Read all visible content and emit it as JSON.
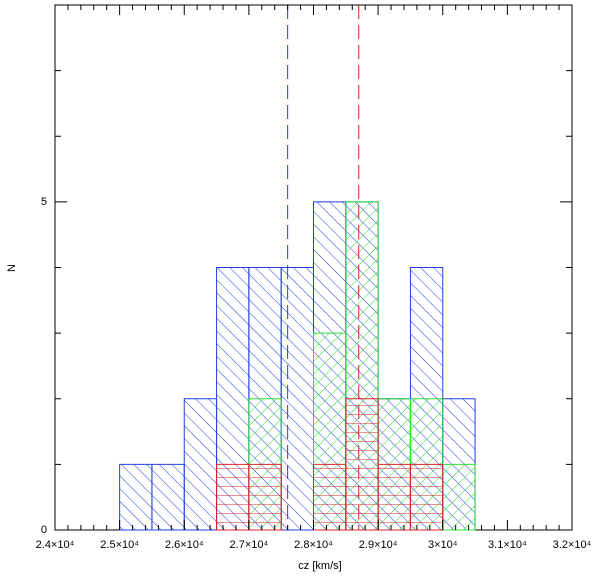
{
  "chart_data": {
    "type": "histogram",
    "xlabel": "cz [km/s]",
    "ylabel": "N",
    "bins": [
      25000,
      25500,
      26000,
      26500,
      27000,
      27500,
      28000,
      28500,
      29000,
      29500,
      30000,
      30500
    ],
    "series": [
      {
        "color": "#2040e0",
        "hatch": "backslash",
        "values": [
          1,
          1,
          2,
          4,
          4,
          4,
          5,
          5,
          2,
          4,
          2
        ]
      },
      {
        "color": "#30e030",
        "hatch": "slash",
        "values": [
          0,
          0,
          0,
          0,
          2,
          0,
          3,
          5,
          2,
          2,
          1
        ]
      },
      {
        "color": "#e02020",
        "hatch": "horizontal",
        "values": [
          0,
          0,
          0,
          1,
          1,
          0,
          1,
          2,
          1,
          1,
          0
        ]
      }
    ],
    "vlines": [
      {
        "value": 27600,
        "color": "#2040e0"
      },
      {
        "value": 28700,
        "color": "#e02020"
      }
    ],
    "xlim": [
      24000,
      32000
    ],
    "xticks": [
      {
        "value": 24000,
        "label": "2.4×10⁴"
      },
      {
        "value": 25000,
        "label": "2.5×10⁴"
      },
      {
        "value": 26000,
        "label": "2.6×10⁴"
      },
      {
        "value": 27000,
        "label": "2.7×10⁴"
      },
      {
        "value": 28000,
        "label": "2.8×10⁴"
      },
      {
        "value": 29000,
        "label": "2.9×10⁴"
      },
      {
        "value": 30000,
        "label": "3×10⁴"
      },
      {
        "value": 31000,
        "label": "3.1×10⁴"
      },
      {
        "value": 32000,
        "label": "3.2×10⁴"
      }
    ],
    "xminor_ticks": [
      24200,
      24400,
      24600,
      24800,
      25200,
      25400,
      25600,
      25800,
      26200,
      26400,
      26600,
      26800,
      27200,
      27400,
      27600,
      27800,
      28200,
      28400,
      28600,
      28800,
      29200,
      29400,
      29600,
      29800,
      30200,
      30400,
      30600,
      30800,
      31200,
      31400,
      31600,
      31800
    ],
    "ylim": [
      0,
      8
    ],
    "yticks": [
      0,
      5
    ],
    "yminor_ticks": [
      1,
      2,
      3,
      4,
      6,
      7
    ]
  }
}
